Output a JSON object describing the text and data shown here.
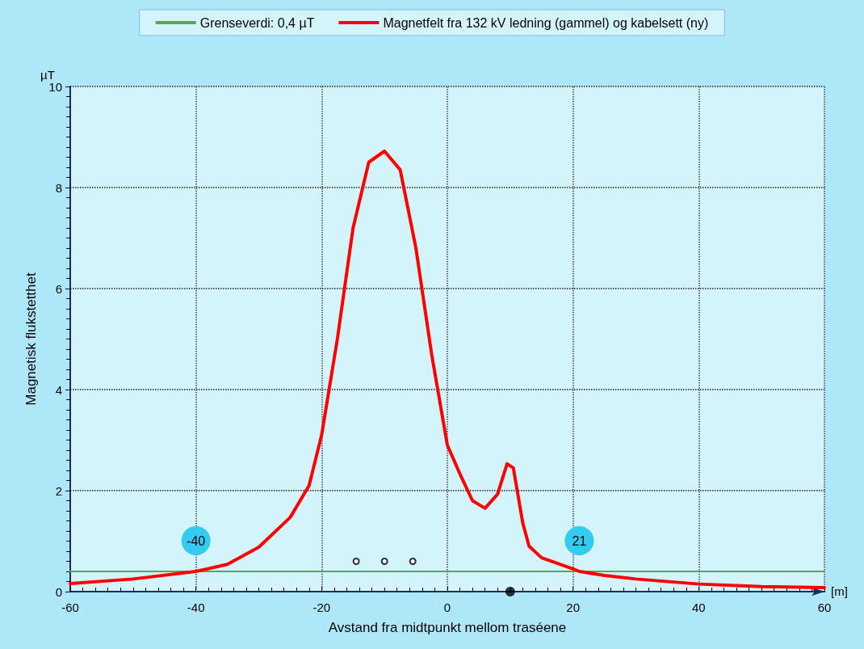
{
  "chart_data": {
    "type": "line",
    "xlabel": "Avstand fra midtpunkt mellom traséene",
    "ylabel": "Magnetisk flukstetthet",
    "annotations": [
      "µT",
      "[m]",
      {
        "text": "-40",
        "x": -40,
        "y": 0.4
      },
      {
        "text": "21",
        "x": 21,
        "y": 0.4
      }
    ],
    "series": [
      {
        "name": "Grenseverdi: 0,4 µT",
        "color": "#5aa55a",
        "x": [
          -60,
          60
        ],
        "values": [
          0.4,
          0.4
        ]
      },
      {
        "name": "Magnetfelt fra 132 kV ledning (gammel) og kabelsett (ny)",
        "color": "#ff0000",
        "x": [
          -60,
          -50,
          -40,
          -35,
          -30,
          -25,
          -22,
          -20,
          -17.5,
          -15,
          -12.5,
          -10,
          -7.5,
          -5,
          -2.5,
          0,
          2,
          4,
          6,
          8,
          9.5,
          10.5,
          12,
          13,
          15,
          20,
          21,
          25,
          30,
          40,
          50,
          60
        ],
        "values": [
          0.16,
          0.25,
          0.4,
          0.54,
          0.88,
          1.47,
          2.1,
          3.1,
          5.0,
          7.2,
          8.5,
          8.72,
          8.35,
          6.8,
          4.7,
          2.9,
          2.33,
          1.8,
          1.65,
          1.93,
          2.53,
          2.45,
          1.36,
          0.9,
          0.67,
          0.45,
          0.4,
          0.32,
          0.25,
          0.15,
          0.1,
          0.08
        ]
      },
      {
        "type": "scatter",
        "color": "#000000",
        "x": [
          -14.5,
          -10,
          -5.5
        ],
        "values": [
          0.6,
          0.6,
          0.6
        ],
        "marker": "circle"
      },
      {
        "type": "scatter",
        "color": "#000000",
        "x": [
          10
        ],
        "values": [
          0
        ],
        "marker": "circle"
      }
    ],
    "xlim": [
      -60,
      60
    ],
    "xticks": [
      -60,
      -40,
      -20,
      0,
      20,
      40,
      60
    ],
    "ylim": [
      0,
      10
    ],
    "yticks": [
      0,
      2,
      4,
      6,
      8,
      10
    ],
    "grid": true,
    "legend": "top",
    "marker": "none",
    "line_style": "solid"
  }
}
